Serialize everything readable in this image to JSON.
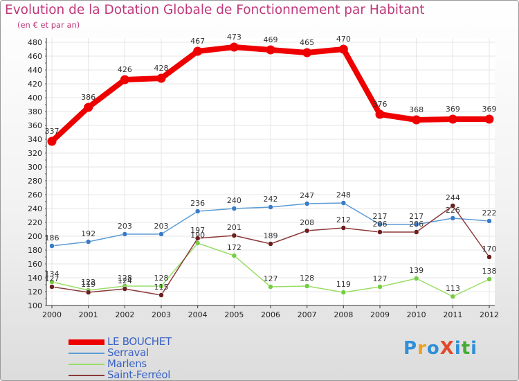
{
  "header": {
    "title": "Evolution de la Dotation Globale de Fonctionnement par Habitant",
    "subtitle": "(en € et par an)"
  },
  "logo": {
    "text": "ProXiti",
    "letters": [
      "P",
      "r",
      "o",
      "X",
      "i",
      "t",
      "i"
    ],
    "colors": [
      "#2f8fd8",
      "#f0a020",
      "#2f8fd8",
      "#e04a2a",
      "#2f8fd8",
      "#44aa33",
      "#2f8fd8"
    ]
  },
  "chart_data": {
    "type": "line",
    "title": "Evolution de la Dotation Globale de Fonctionnement par Habitant",
    "subtitle": "(en € et par an)",
    "xlabel": "",
    "ylabel": "",
    "x": [
      "2000",
      "2001",
      "2002",
      "2003",
      "2004",
      "2005",
      "2006",
      "2007",
      "2008",
      "2009",
      "2010",
      "2011",
      "2012"
    ],
    "ylim": [
      100,
      480
    ],
    "yticks": [
      100,
      120,
      140,
      160,
      180,
      200,
      220,
      240,
      260,
      280,
      300,
      320,
      340,
      360,
      380,
      400,
      420,
      440,
      460,
      480
    ],
    "grid": true,
    "legend_position": "bottom-left",
    "series": [
      {
        "name": "LE BOUCHET",
        "color": "#ee0000",
        "marker_color": "#ee0000",
        "emphasis": "thick",
        "values": [
          337,
          386,
          426,
          428,
          467,
          473,
          469,
          465,
          470,
          376,
          368,
          369,
          369
        ],
        "labels": [
          "337",
          "386",
          "426",
          "428",
          "467",
          "473",
          "469",
          "465",
          "470",
          "376",
          "368",
          "369",
          "369"
        ]
      },
      {
        "name": "Serraval",
        "color": "#5b9bd5",
        "marker_color": "#3a7bc8",
        "emphasis": "thin",
        "values": [
          186,
          192,
          203,
          203,
          236,
          240,
          242,
          247,
          248,
          217,
          217,
          226,
          222
        ],
        "labels": [
          "186",
          "192",
          "203",
          "203",
          "236",
          "240",
          "242",
          "247",
          "248",
          "217",
          "217",
          "226",
          "222"
        ]
      },
      {
        "name": "Marlens",
        "color": "#99dd66",
        "marker_color": "#77cc44",
        "emphasis": "thin",
        "values": [
          134,
          122,
          128,
          128,
          190,
          172,
          127,
          128,
          119,
          127,
          139,
          113,
          138
        ],
        "labels": [
          "134",
          "122",
          "128",
          "128",
          "190",
          "172",
          "127",
          "128",
          "119",
          "127",
          "139",
          "113",
          "138"
        ]
      },
      {
        "name": "Saint-Ferréol",
        "color": "#8b3a3a",
        "marker_color": "#6b1f1f",
        "emphasis": "thin",
        "values": [
          127,
          119,
          124,
          115,
          197,
          201,
          189,
          208,
          212,
          206,
          206,
          244,
          170
        ],
        "labels": [
          "127",
          "119",
          "124",
          "115",
          "197",
          "201",
          "189",
          "208",
          "212",
          "206",
          "206",
          "244",
          "170"
        ]
      }
    ]
  }
}
